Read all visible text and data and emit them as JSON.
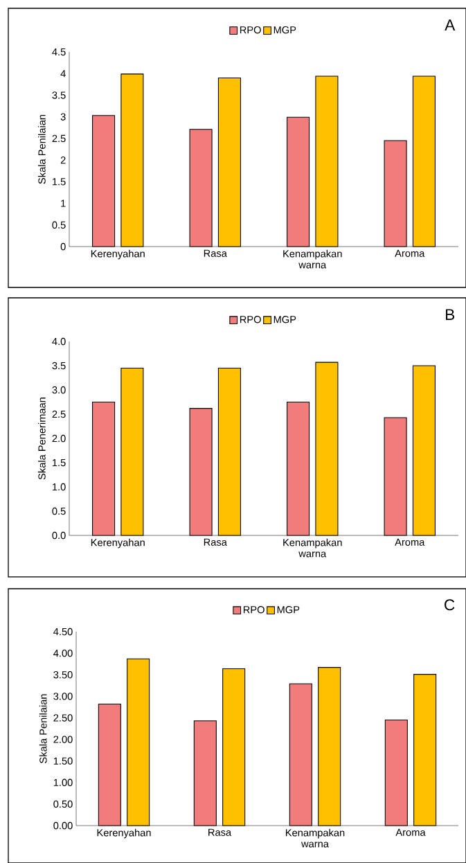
{
  "chart_data": [
    {
      "type": "bar",
      "title": "A",
      "ylabel": "Skala Penilaian",
      "categories": [
        "Kerenyahan",
        "Rasa",
        "Kenampakan warna",
        "Aroma"
      ],
      "series": [
        {
          "name": "RPO",
          "color": "#f07c7c",
          "values": [
            3.03,
            2.71,
            2.99,
            2.45
          ]
        },
        {
          "name": "MGP",
          "color": "#ffc000",
          "values": [
            3.99,
            3.9,
            3.94,
            3.94
          ]
        }
      ],
      "ylim": [
        0,
        4.5
      ],
      "yticks": [
        0,
        0.5,
        1,
        1.5,
        2,
        2.5,
        3,
        3.5,
        4,
        4.5
      ],
      "legend": "top",
      "grid": false
    },
    {
      "type": "bar",
      "title": "B",
      "ylabel": "Skala Penerimaan",
      "categories": [
        "Kerenyahan",
        "Rasa",
        "Kenampakan warna",
        "Aroma"
      ],
      "series": [
        {
          "name": "RPO",
          "color": "#f07c7c",
          "values": [
            2.75,
            2.62,
            2.75,
            2.43
          ]
        },
        {
          "name": "MGP",
          "color": "#ffc000",
          "values": [
            3.45,
            3.45,
            3.57,
            3.5
          ]
        }
      ],
      "ylim": [
        0,
        4
      ],
      "yticks": [
        {
          "value": 0,
          "label": "0.0"
        },
        {
          "value": 0.5,
          "label": "0.5"
        },
        {
          "value": 1,
          "label": "1.0"
        },
        {
          "value": 1.5,
          "label": "1.5"
        },
        {
          "value": 2,
          "label": "2.0"
        },
        {
          "value": 2.5,
          "label": "2.5"
        },
        {
          "value": 3,
          "label": "3.0"
        },
        {
          "value": 3.5,
          "label": "3.5"
        },
        {
          "value": 4,
          "label": "4.0"
        }
      ],
      "legend": "top",
      "grid": false
    },
    {
      "type": "bar",
      "title": "C",
      "ylabel": "Skala Penilaian",
      "categories": [
        "Kerenyahan",
        "Rasa",
        "Kenampakan warna",
        "Aroma"
      ],
      "series": [
        {
          "name": "RPO",
          "color": "#f07c7c",
          "values": [
            2.82,
            2.43,
            3.29,
            2.45
          ]
        },
        {
          "name": "MGP",
          "color": "#ffc000",
          "values": [
            3.87,
            3.64,
            3.67,
            3.51
          ]
        }
      ],
      "ylim": [
        0,
        4.5
      ],
      "yticks": [
        {
          "value": 0,
          "label": "0.00"
        },
        {
          "value": 0.5,
          "label": "0.50"
        },
        {
          "value": 1,
          "label": "1.00"
        },
        {
          "value": 1.5,
          "label": "1.50"
        },
        {
          "value": 2,
          "label": "2.00"
        },
        {
          "value": 2.5,
          "label": "2.50"
        },
        {
          "value": 3,
          "label": "3.00"
        },
        {
          "value": 3.5,
          "label": "3.50"
        },
        {
          "value": 4,
          "label": "4.00"
        },
        {
          "value": 4.5,
          "label": "4.50"
        }
      ],
      "legend": "top",
      "grid": false
    }
  ]
}
